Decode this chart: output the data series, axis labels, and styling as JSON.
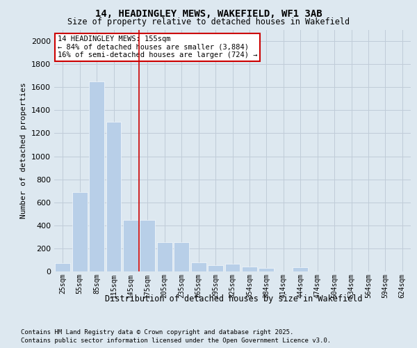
{
  "title": "14, HEADINGLEY MEWS, WAKEFIELD, WF1 3AB",
  "subtitle": "Size of property relative to detached houses in Wakefield",
  "xlabel": "Distribution of detached houses by size in Wakefield",
  "ylabel": "Number of detached properties",
  "categories": [
    "25sqm",
    "55sqm",
    "85sqm",
    "115sqm",
    "145sqm",
    "175sqm",
    "205sqm",
    "235sqm",
    "265sqm",
    "295sqm",
    "325sqm",
    "354sqm",
    "384sqm",
    "414sqm",
    "444sqm",
    "474sqm",
    "504sqm",
    "534sqm",
    "564sqm",
    "594sqm",
    "624sqm"
  ],
  "values": [
    75,
    690,
    1650,
    1300,
    450,
    450,
    255,
    255,
    80,
    55,
    65,
    40,
    30,
    0,
    35,
    0,
    0,
    0,
    0,
    0,
    0
  ],
  "bar_color": "#b8cfe8",
  "grid_color": "#c0ccd8",
  "background_color": "#dde8f0",
  "annotation_text": "14 HEADINGLEY MEWS: 155sqm\n← 84% of detached houses are smaller (3,884)\n16% of semi-detached houses are larger (724) →",
  "annotation_border_color": "#cc0000",
  "ylim": [
    0,
    2100
  ],
  "yticks": [
    0,
    200,
    400,
    600,
    800,
    1000,
    1200,
    1400,
    1600,
    1800,
    2000
  ],
  "footer_line1": "Contains HM Land Registry data © Crown copyright and database right 2025.",
  "footer_line2": "Contains public sector information licensed under the Open Government Licence v3.0."
}
